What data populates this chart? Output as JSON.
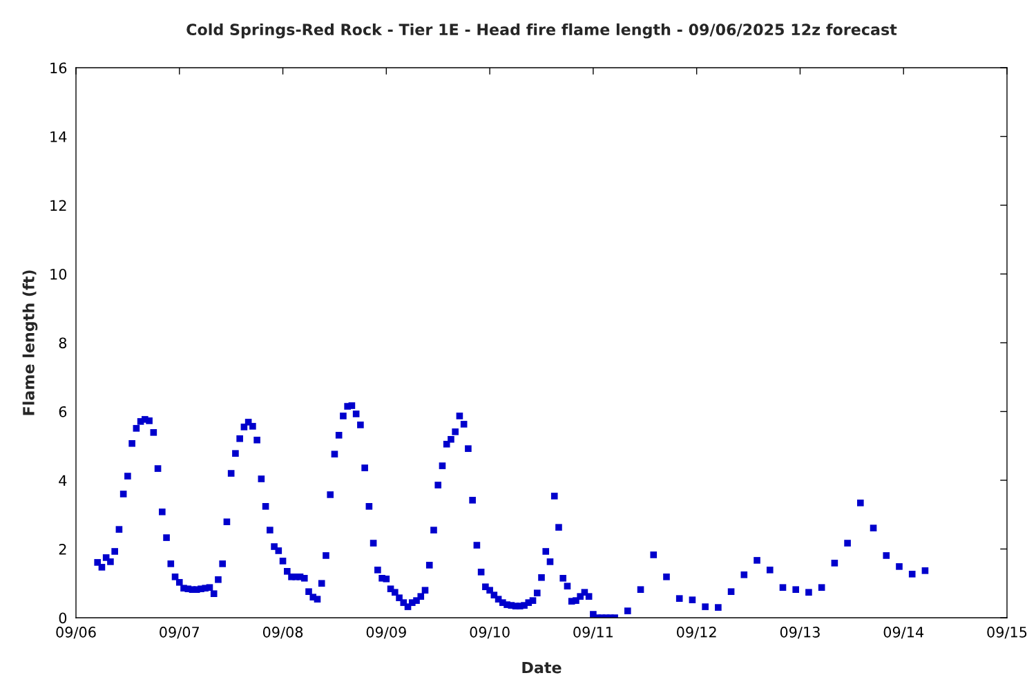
{
  "chart_data": {
    "type": "scatter",
    "title": "Cold Springs-Red Rock - Tier 1E - Head fire flame length - 09/06/2025 12z forecast",
    "xlabel": "Date",
    "ylabel": "Flame length (ft)",
    "series": [
      {
        "color": "#0000cc",
        "marker": "square",
        "x": [
          "2025-09-06T05:00",
          "2025-09-06T06:00",
          "2025-09-06T07:00",
          "2025-09-06T08:00",
          "2025-09-06T09:00",
          "2025-09-06T10:00",
          "2025-09-06T11:00",
          "2025-09-06T12:00",
          "2025-09-06T13:00",
          "2025-09-06T14:00",
          "2025-09-06T15:00",
          "2025-09-06T16:00",
          "2025-09-06T17:00",
          "2025-09-06T18:00",
          "2025-09-06T19:00",
          "2025-09-06T20:00",
          "2025-09-06T21:00",
          "2025-09-06T22:00",
          "2025-09-06T23:00",
          "2025-09-07T00:00",
          "2025-09-07T01:00",
          "2025-09-07T02:00",
          "2025-09-07T03:00",
          "2025-09-07T04:00",
          "2025-09-07T05:00",
          "2025-09-07T06:00",
          "2025-09-07T07:00",
          "2025-09-07T08:00",
          "2025-09-07T09:00",
          "2025-09-07T10:00",
          "2025-09-07T11:00",
          "2025-09-07T12:00",
          "2025-09-07T13:00",
          "2025-09-07T14:00",
          "2025-09-07T15:00",
          "2025-09-07T16:00",
          "2025-09-07T17:00",
          "2025-09-07T18:00",
          "2025-09-07T19:00",
          "2025-09-07T20:00",
          "2025-09-07T21:00",
          "2025-09-07T22:00",
          "2025-09-07T23:00",
          "2025-09-08T00:00",
          "2025-09-08T01:00",
          "2025-09-08T02:00",
          "2025-09-08T03:00",
          "2025-09-08T04:00",
          "2025-09-08T05:00",
          "2025-09-08T06:00",
          "2025-09-08T07:00",
          "2025-09-08T08:00",
          "2025-09-08T09:00",
          "2025-09-08T10:00",
          "2025-09-08T11:00",
          "2025-09-08T12:00",
          "2025-09-08T13:00",
          "2025-09-08T14:00",
          "2025-09-08T15:00",
          "2025-09-08T16:00",
          "2025-09-08T17:00",
          "2025-09-08T18:00",
          "2025-09-08T19:00",
          "2025-09-08T20:00",
          "2025-09-08T21:00",
          "2025-09-08T22:00",
          "2025-09-08T23:00",
          "2025-09-09T00:00",
          "2025-09-09T01:00",
          "2025-09-09T02:00",
          "2025-09-09T03:00",
          "2025-09-09T04:00",
          "2025-09-09T05:00",
          "2025-09-09T06:00",
          "2025-09-09T07:00",
          "2025-09-09T08:00",
          "2025-09-09T09:00",
          "2025-09-09T10:00",
          "2025-09-09T11:00",
          "2025-09-09T12:00",
          "2025-09-09T13:00",
          "2025-09-09T14:00",
          "2025-09-09T15:00",
          "2025-09-09T16:00",
          "2025-09-09T17:00",
          "2025-09-09T18:00",
          "2025-09-09T19:00",
          "2025-09-09T20:00",
          "2025-09-09T21:00",
          "2025-09-09T22:00",
          "2025-09-09T23:00",
          "2025-09-10T00:00",
          "2025-09-10T01:00",
          "2025-09-10T02:00",
          "2025-09-10T03:00",
          "2025-09-10T04:00",
          "2025-09-10T05:00",
          "2025-09-10T06:00",
          "2025-09-10T07:00",
          "2025-09-10T08:00",
          "2025-09-10T09:00",
          "2025-09-10T10:00",
          "2025-09-10T11:00",
          "2025-09-10T12:00",
          "2025-09-10T13:00",
          "2025-09-10T14:00",
          "2025-09-10T15:00",
          "2025-09-10T16:00",
          "2025-09-10T17:00",
          "2025-09-10T18:00",
          "2025-09-10T19:00",
          "2025-09-10T20:00",
          "2025-09-10T21:00",
          "2025-09-10T22:00",
          "2025-09-10T23:00",
          "2025-09-11T00:00",
          "2025-09-11T01:00",
          "2025-09-11T02:00",
          "2025-09-11T03:00",
          "2025-09-11T04:00",
          "2025-09-11T05:00",
          "2025-09-11T08:00",
          "2025-09-11T11:00",
          "2025-09-11T14:00",
          "2025-09-11T17:00",
          "2025-09-11T20:00",
          "2025-09-11T23:00",
          "2025-09-12T02:00",
          "2025-09-12T05:00",
          "2025-09-12T08:00",
          "2025-09-12T11:00",
          "2025-09-12T14:00",
          "2025-09-12T17:00",
          "2025-09-12T20:00",
          "2025-09-12T23:00",
          "2025-09-13T02:00",
          "2025-09-13T05:00",
          "2025-09-13T08:00",
          "2025-09-13T11:00",
          "2025-09-13T14:00",
          "2025-09-13T17:00",
          "2025-09-13T20:00",
          "2025-09-13T23:00",
          "2025-09-14T02:00",
          "2025-09-14T05:00"
        ],
        "values": [
          1.61,
          1.47,
          1.75,
          1.63,
          1.93,
          2.57,
          3.6,
          4.12,
          5.07,
          5.51,
          5.71,
          5.77,
          5.73,
          5.39,
          4.34,
          3.08,
          2.33,
          1.57,
          1.19,
          1.03,
          0.86,
          0.84,
          0.82,
          0.82,
          0.84,
          0.86,
          0.88,
          0.7,
          1.11,
          1.57,
          2.79,
          4.2,
          4.78,
          5.21,
          5.55,
          5.69,
          5.57,
          5.17,
          4.04,
          3.24,
          2.55,
          2.07,
          1.95,
          1.65,
          1.35,
          1.19,
          1.19,
          1.19,
          1.15,
          0.76,
          0.6,
          0.54,
          1.0,
          1.81,
          3.58,
          4.76,
          5.31,
          5.87,
          6.15,
          6.17,
          5.93,
          5.61,
          4.36,
          3.24,
          2.17,
          1.39,
          1.15,
          1.13,
          0.84,
          0.74,
          0.58,
          0.44,
          0.32,
          0.44,
          0.5,
          0.62,
          0.8,
          1.53,
          2.55,
          3.86,
          4.42,
          5.05,
          5.19,
          5.41,
          5.87,
          5.63,
          4.92,
          3.42,
          2.11,
          1.33,
          0.9,
          0.8,
          0.66,
          0.54,
          0.44,
          0.38,
          0.36,
          0.34,
          0.34,
          0.36,
          0.44,
          0.5,
          0.72,
          1.17,
          1.93,
          1.63,
          3.54,
          2.63,
          1.15,
          0.92,
          0.48,
          0.5,
          0.62,
          0.74,
          0.62,
          0.1,
          0,
          0,
          0,
          0,
          0,
          0.2,
          0.82,
          1.83,
          1.19,
          0.56,
          0.52,
          0.32,
          0.3,
          0.76,
          1.25,
          1.67,
          1.39,
          0.88,
          0.82,
          0.74,
          0.88,
          1.59,
          2.17,
          3.34,
          2.61,
          1.81,
          1.49,
          1.27,
          1.37
        ]
      }
    ],
    "xlim": [
      "2025-09-06",
      "2025-09-15"
    ],
    "xticks": [
      {
        "value": "2025-09-06",
        "label": "09/06"
      },
      {
        "value": "2025-09-07",
        "label": "09/07"
      },
      {
        "value": "2025-09-08",
        "label": "09/08"
      },
      {
        "value": "2025-09-09",
        "label": "09/09"
      },
      {
        "value": "2025-09-10",
        "label": "09/10"
      },
      {
        "value": "2025-09-11",
        "label": "09/11"
      },
      {
        "value": "2025-09-12",
        "label": "09/12"
      },
      {
        "value": "2025-09-13",
        "label": "09/13"
      },
      {
        "value": "2025-09-14",
        "label": "09/14"
      },
      {
        "value": "2025-09-15",
        "label": "09/15"
      }
    ],
    "ylim": [
      0,
      16
    ],
    "yticks": [
      0,
      2,
      4,
      6,
      8,
      10,
      12,
      14,
      16
    ],
    "grid": false
  }
}
